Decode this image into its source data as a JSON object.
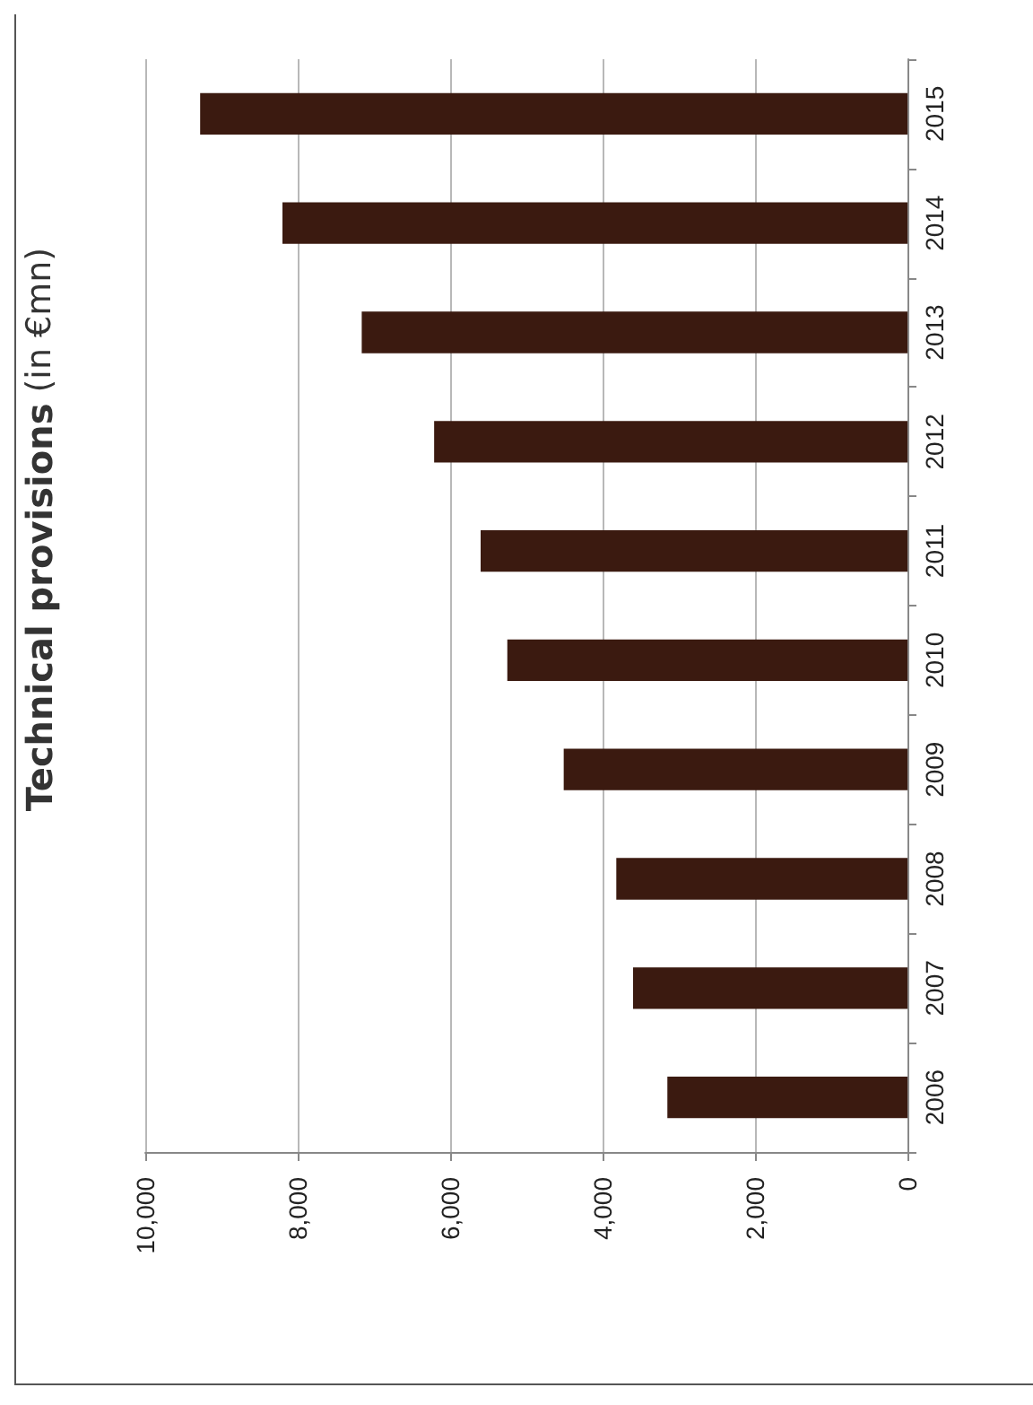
{
  "chart_data": {
    "type": "bar",
    "orientation": "horizontal",
    "title": "Technical provisions (in €mn)",
    "categories": [
      "2015",
      "2014",
      "2013",
      "2012",
      "2011",
      "2010",
      "2009",
      "2008",
      "2007",
      "2006"
    ],
    "values": [
      9280,
      8200,
      7160,
      6210,
      5600,
      5250,
      4510,
      3820,
      3600,
      3150
    ],
    "color": "#3b1a10",
    "xlim": [
      10000,
      0
    ],
    "xticks": [
      {
        "value": 10000,
        "label": "10,000"
      },
      {
        "value": 8000,
        "label": "8,000"
      },
      {
        "value": 6000,
        "label": "6,000"
      },
      {
        "value": 4000,
        "label": "4,000"
      },
      {
        "value": 2000,
        "label": "2,000"
      },
      {
        "value": 0,
        "label": "0"
      }
    ],
    "grid": "x"
  }
}
